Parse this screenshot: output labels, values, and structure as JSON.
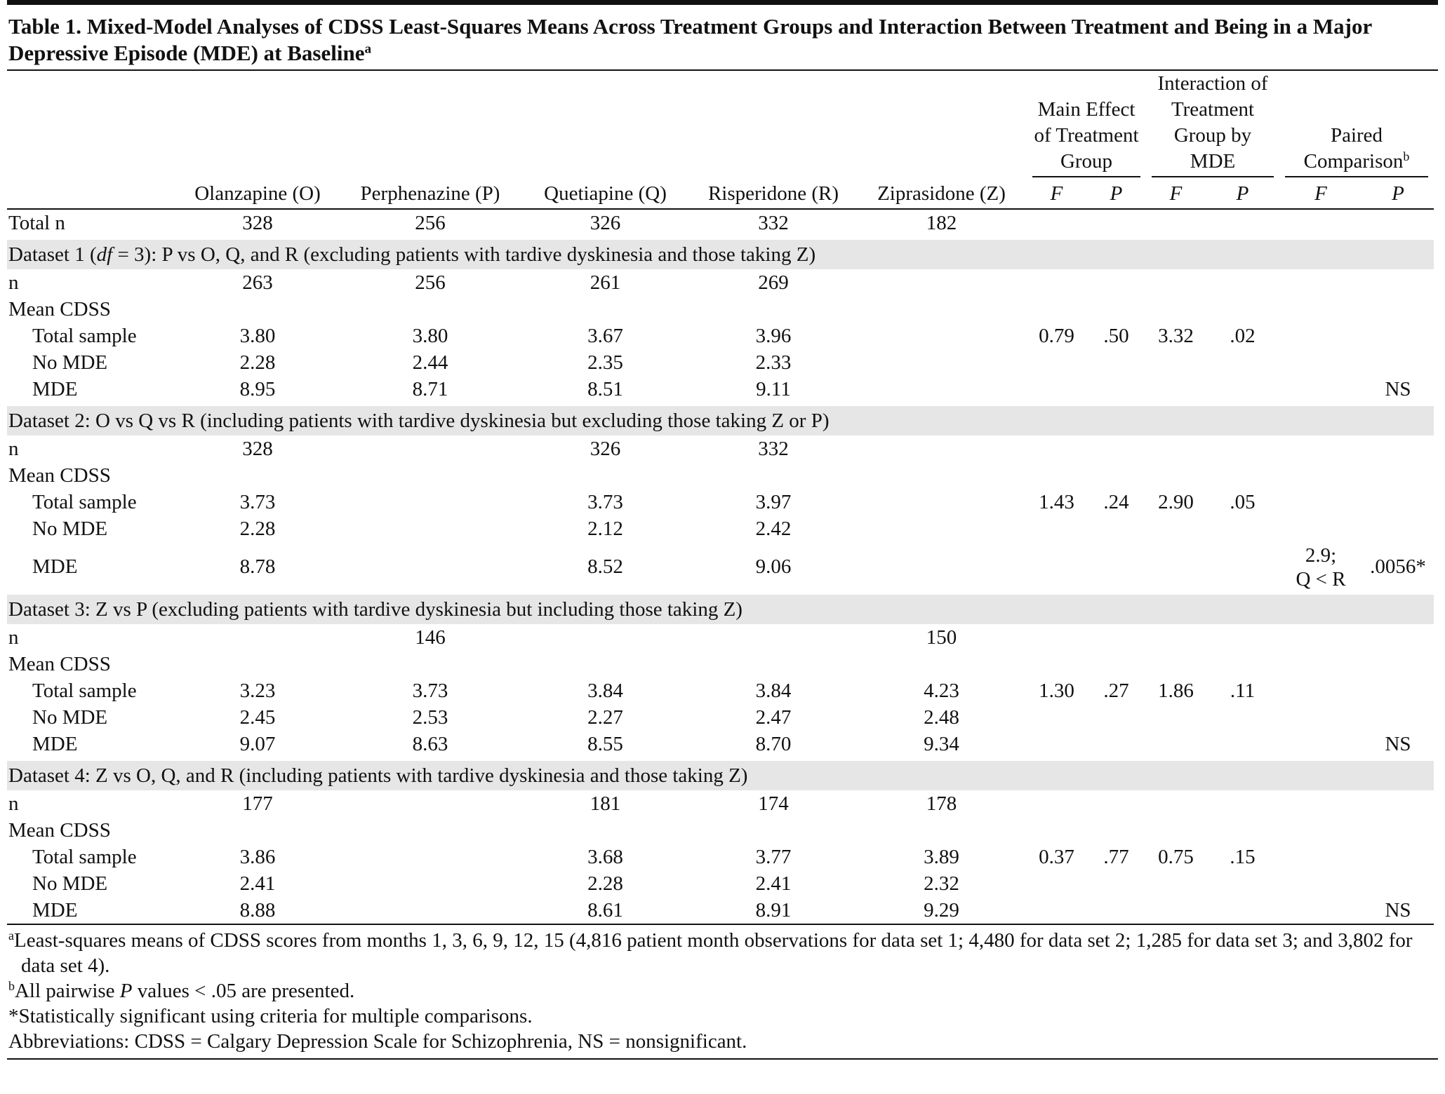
{
  "title": {
    "parts": [
      {
        "text": "Table 1. Mixed-Model Analyses of CDSS Least-Squares Means Across Treatment Groups and Interaction Between Treatment and Being in a Major Depressive Episode (MDE) at Baseline"
      },
      {
        "text": "a",
        "sup": true
      }
    ]
  },
  "columns": [
    "Olanzapine (O)",
    "Perphenazine (P)",
    "Quetiapine (Q)",
    "Risperidone (R)",
    "Ziprasidone (Z)"
  ],
  "stat_groups": [
    {
      "parts": [
        {
          "text": "Main Effect of Treatment Group"
        }
      ],
      "columns": [
        "F",
        "P"
      ]
    },
    {
      "parts": [
        {
          "text": "Interaction of Treatment Group by MDE"
        }
      ],
      "columns": [
        "F",
        "P"
      ]
    },
    {
      "parts": [
        {
          "text": "Paired Comparison"
        },
        {
          "text": "b",
          "sup": true
        }
      ],
      "columns": [
        "F",
        "P"
      ]
    }
  ],
  "total_row": {
    "label": "Total n",
    "cells": [
      "328",
      "256",
      "326",
      "332",
      "182"
    ]
  },
  "datasets": [
    {
      "heading": [
        {
          "text": "Dataset 1 ("
        },
        {
          "text": "df",
          "italic": true
        },
        {
          "text": " = 3): P vs O, Q, and R (excluding patients with tardive dyskinesia and those taking Z)"
        }
      ],
      "n": {
        "label": "n",
        "cells": [
          "263",
          "256",
          "261",
          "269",
          null
        ]
      },
      "mean": {
        "label": "Mean CDSS",
        "rows": [
          {
            "label": "Total sample",
            "cells": [
              "3.80",
              "3.80",
              "3.67",
              "3.96",
              null
            ],
            "stats": [
              "0.79",
              ".50",
              "3.32",
              ".02",
              null,
              null
            ]
          },
          {
            "label": "No MDE",
            "cells": [
              "2.28",
              "2.44",
              "2.35",
              "2.33",
              null
            ],
            "stats": [
              null,
              null,
              null,
              null,
              null,
              null
            ]
          },
          {
            "label": "MDE",
            "cells": [
              "8.95",
              "8.71",
              "8.51",
              "9.11",
              null
            ],
            "stats": [
              null,
              null,
              null,
              null,
              null,
              "NS"
            ]
          }
        ]
      }
    },
    {
      "heading": [
        {
          "text": "Dataset 2: O vs Q vs R (including patients with tardive dyskinesia but excluding those taking Z or P)"
        }
      ],
      "n": {
        "label": "n",
        "cells": [
          "328",
          null,
          "326",
          "332",
          null
        ]
      },
      "mean": {
        "label": "Mean CDSS",
        "rows": [
          {
            "label": "Total sample",
            "cells": [
              "3.73",
              null,
              "3.73",
              "3.97",
              null
            ],
            "stats": [
              "1.43",
              ".24",
              "2.90",
              ".05",
              null,
              null
            ]
          },
          {
            "label": "No MDE",
            "cells": [
              "2.28",
              null,
              "2.12",
              "2.42",
              null
            ],
            "stats": [
              null,
              null,
              null,
              null,
              null,
              null
            ]
          },
          {
            "label": "MDE",
            "cells": [
              "8.78",
              null,
              "8.52",
              "9.06",
              null
            ],
            "stats": [
              null,
              null,
              null,
              null,
              "2.9; Q < R",
              ".0056*"
            ]
          }
        ]
      }
    },
    {
      "heading": [
        {
          "text": "Dataset 3: Z vs P (excluding patients with tardive dyskinesia but including those taking Z)"
        }
      ],
      "n": {
        "label": "n",
        "cells": [
          null,
          "146",
          null,
          null,
          "150"
        ]
      },
      "mean": {
        "label": "Mean CDSS",
        "rows": [
          {
            "label": "Total sample",
            "cells": [
              "3.23",
              "3.73",
              "3.84",
              "3.84",
              "4.23"
            ],
            "stats": [
              "1.30",
              ".27",
              "1.86",
              ".11",
              null,
              null
            ]
          },
          {
            "label": "No MDE",
            "cells": [
              "2.45",
              "2.53",
              "2.27",
              "2.47",
              "2.48"
            ],
            "stats": [
              null,
              null,
              null,
              null,
              null,
              null
            ]
          },
          {
            "label": "MDE",
            "cells": [
              "9.07",
              "8.63",
              "8.55",
              "8.70",
              "9.34"
            ],
            "stats": [
              null,
              null,
              null,
              null,
              null,
              "NS"
            ]
          }
        ]
      }
    },
    {
      "heading": [
        {
          "text": "Dataset 4: Z vs O, Q, and R (including patients with tardive dyskinesia and those taking Z)"
        }
      ],
      "n": {
        "label": "n",
        "cells": [
          "177",
          null,
          "181",
          "174",
          "178"
        ]
      },
      "mean": {
        "label": "Mean CDSS",
        "rows": [
          {
            "label": "Total sample",
            "cells": [
              "3.86",
              null,
              "3.68",
              "3.77",
              "3.89"
            ],
            "stats": [
              "0.37",
              ".77",
              "0.75",
              ".15",
              null,
              null
            ]
          },
          {
            "label": "No MDE",
            "cells": [
              "2.41",
              null,
              "2.28",
              "2.41",
              "2.32"
            ],
            "stats": [
              null,
              null,
              null,
              null,
              null,
              null
            ]
          },
          {
            "label": "MDE",
            "cells": [
              "8.88",
              null,
              "8.61",
              "8.91",
              "9.29"
            ],
            "stats": [
              null,
              null,
              null,
              null,
              null,
              "NS"
            ]
          }
        ]
      }
    }
  ],
  "footnotes": [
    {
      "parts": [
        {
          "text": "a",
          "sup": true
        },
        {
          "text": "Least-squares means of CDSS scores from months 1, 3, 6, 9, 12, 15 (4,816 patient month observations for data set 1; 4,480 for data set 2; 1,285 for data set 3; and 3,802 for data set 4)."
        }
      ]
    },
    {
      "parts": [
        {
          "text": "b",
          "sup": true
        },
        {
          "text": "All pairwise "
        },
        {
          "text": "P",
          "italic": true
        },
        {
          "text": " values < .05 are presented."
        }
      ]
    },
    {
      "parts": [
        {
          "text": "*Statistically significant using criteria for multiple comparisons."
        }
      ]
    },
    {
      "parts": [
        {
          "text": "Abbreviations: CDSS = Calgary Depression Scale for Schizophrenia, NS = nonsignificant."
        }
      ]
    }
  ]
}
